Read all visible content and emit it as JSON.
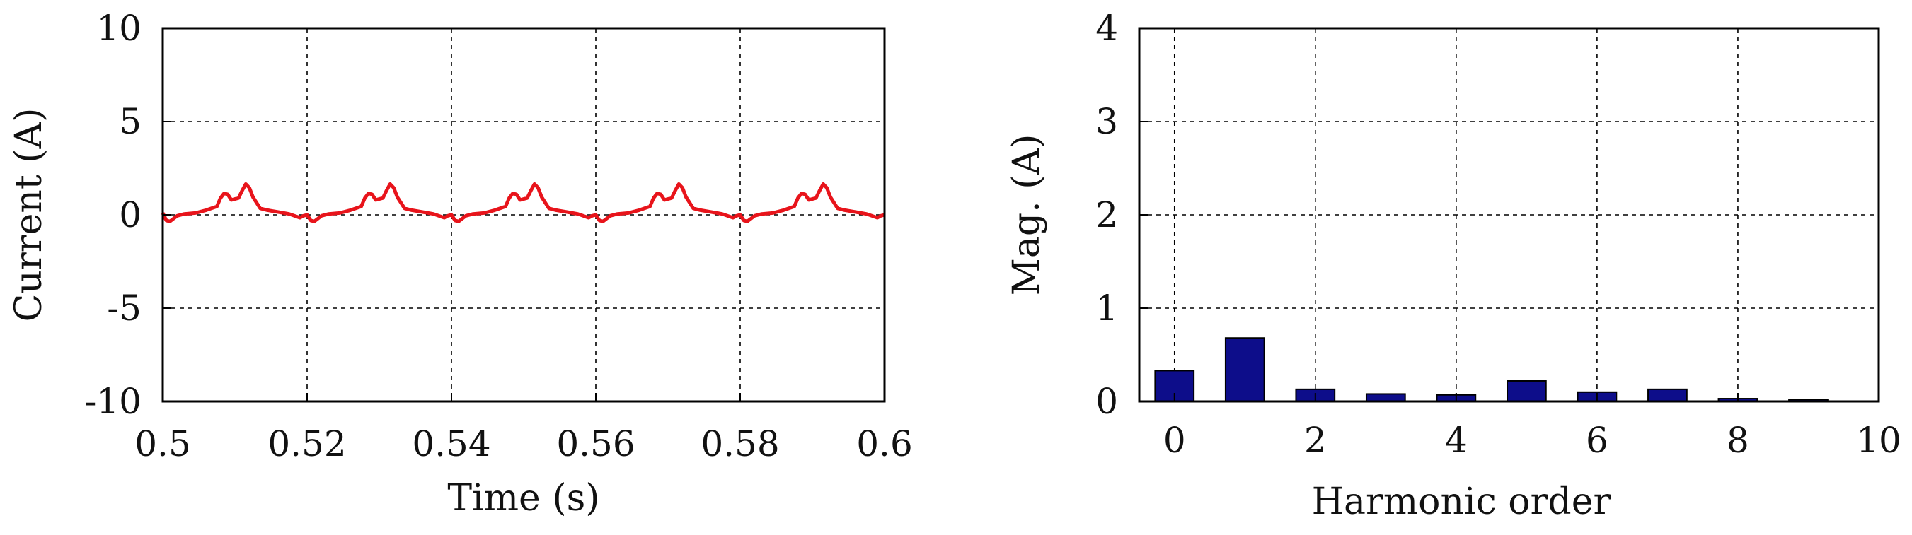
{
  "chart_data": [
    {
      "type": "line",
      "title": "",
      "xlabel": "Time (s)",
      "ylabel": "Current (A)",
      "xlim": [
        0.5,
        0.6
      ],
      "ylim": [
        -10,
        10
      ],
      "xticks": [
        0.5,
        0.52,
        0.54,
        0.56,
        0.58,
        0.6
      ],
      "xtick_labels": [
        "0.5",
        "0.52",
        "0.54",
        "0.56",
        "0.58",
        "0.6"
      ],
      "yticks": [
        10,
        5,
        0,
        -5,
        -10
      ],
      "ytick_labels": [
        "10",
        "5",
        "0",
        "-5",
        "-10"
      ],
      "grid": true,
      "series": [
        {
          "color": "#e8141b",
          "period": 0.02,
          "x": [
            0.5,
            0.5005,
            0.501,
            0.502,
            0.503,
            0.5045,
            0.506,
            0.5075,
            0.508,
            0.5085,
            0.509,
            0.5095,
            0.5105,
            0.511,
            0.5115,
            0.512,
            0.5125,
            0.5135,
            0.5145,
            0.516,
            0.5175,
            0.519,
            0.5195,
            0.52
          ],
          "y": [
            0.1,
            -0.3,
            -0.35,
            -0.05,
            0.05,
            0.1,
            0.25,
            0.45,
            0.9,
            1.15,
            1.1,
            0.8,
            0.9,
            1.3,
            1.65,
            1.45,
            0.95,
            0.35,
            0.25,
            0.15,
            0.05,
            -0.15,
            -0.05,
            0.0
          ]
        }
      ]
    },
    {
      "type": "bar",
      "title": "",
      "xlabel": "Harmonic order",
      "ylabel": "Mag. (A)",
      "xlim": [
        -0.5,
        10
      ],
      "ylim": [
        0,
        4
      ],
      "xticks": [
        0,
        2,
        4,
        6,
        8,
        10
      ],
      "xtick_labels": [
        "0",
        "2",
        "4",
        "6",
        "8",
        "10"
      ],
      "yticks": [
        4,
        3,
        2,
        1,
        0
      ],
      "ytick_labels": [
        "4",
        "3",
        "2",
        "1",
        "0"
      ],
      "grid": true,
      "bar_color": "#0d0d8a",
      "categories": [
        0,
        1,
        2,
        3,
        4,
        5,
        6,
        7,
        8,
        9
      ],
      "values": [
        0.33,
        0.68,
        0.13,
        0.08,
        0.07,
        0.22,
        0.1,
        0.13,
        0.03,
        0.02
      ]
    }
  ]
}
